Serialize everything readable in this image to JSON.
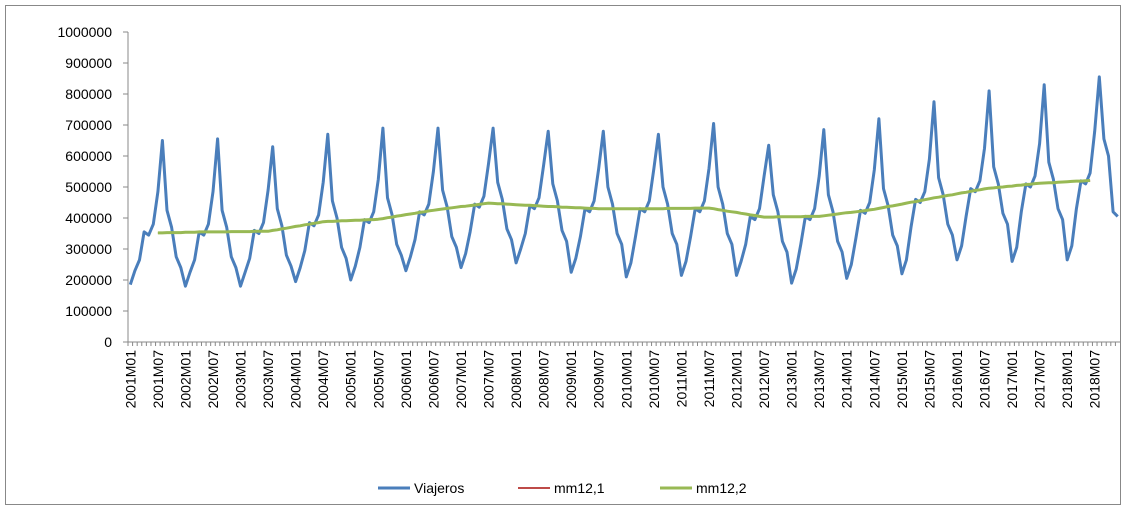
{
  "chart_data": {
    "type": "line",
    "categories": [
      "2001M01",
      null,
      null,
      null,
      null,
      null,
      "2001M07",
      null,
      null,
      null,
      null,
      null,
      "2002M01",
      null,
      null,
      null,
      null,
      null,
      "2002M07",
      null,
      null,
      null,
      null,
      null,
      "2003M01",
      null,
      null,
      null,
      null,
      null,
      "2003M07",
      null,
      null,
      null,
      null,
      null,
      "2004M01",
      null,
      null,
      null,
      null,
      null,
      "2004M07",
      null,
      null,
      null,
      null,
      null,
      "2005M01",
      null,
      null,
      null,
      null,
      null,
      "2005M07",
      null,
      null,
      null,
      null,
      null,
      "2006M01",
      null,
      null,
      null,
      null,
      null,
      "2006M07",
      null,
      null,
      null,
      null,
      null,
      "2007M01",
      null,
      null,
      null,
      null,
      null,
      "2007M07",
      null,
      null,
      null,
      null,
      null,
      "2008M01",
      null,
      null,
      null,
      null,
      null,
      "2008M07",
      null,
      null,
      null,
      null,
      null,
      "2009M01",
      null,
      null,
      null,
      null,
      null,
      "2009M07",
      null,
      null,
      null,
      null,
      null,
      "2010M01",
      null,
      null,
      null,
      null,
      null,
      "2010M07",
      null,
      null,
      null,
      null,
      null,
      "2011M01",
      null,
      null,
      null,
      null,
      null,
      "2011M07",
      null,
      null,
      null,
      null,
      null,
      "2012M01",
      null,
      null,
      null,
      null,
      null,
      "2012M07",
      null,
      null,
      null,
      null,
      null,
      "2013M01",
      null,
      null,
      null,
      null,
      null,
      "2013M07",
      null,
      null,
      null,
      null,
      null,
      "2014M01",
      null,
      null,
      null,
      null,
      null,
      "2014M07",
      null,
      null,
      null,
      null,
      null,
      "2015M01",
      null,
      null,
      null,
      null,
      null,
      "2015M07",
      null,
      null,
      null,
      null,
      null,
      "2016M01",
      null,
      null,
      null,
      null,
      null,
      "2016M07",
      null,
      null,
      null,
      null,
      null,
      "2017M01",
      null,
      null,
      null,
      null,
      null,
      "2017M07",
      null,
      null,
      null,
      null,
      null,
      "2018M01",
      null,
      null,
      null,
      null,
      null,
      "2018M07",
      null,
      null,
      null,
      null,
      null
    ],
    "series": [
      {
        "name": "Viajeros",
        "color": "#4a7ebb",
        "width": 3,
        "values": [
          185000,
          230000,
          265000,
          355000,
          345000,
          380000,
          485000,
          650000,
          425000,
          370000,
          275000,
          240000,
          180000,
          225000,
          265000,
          355000,
          345000,
          380000,
          485000,
          655000,
          425000,
          370000,
          275000,
          240000,
          180000,
          225000,
          270000,
          360000,
          350000,
          385000,
          490000,
          630000,
          430000,
          375000,
          280000,
          245000,
          195000,
          240000,
          295000,
          385000,
          375000,
          410000,
          515000,
          670000,
          455000,
          400000,
          305000,
          270000,
          200000,
          245000,
          305000,
          395000,
          385000,
          420000,
          525000,
          690000,
          465000,
          410000,
          315000,
          280000,
          230000,
          275000,
          330000,
          420000,
          410000,
          445000,
          550000,
          690000,
          490000,
          435000,
          340000,
          305000,
          240000,
          285000,
          355000,
          445000,
          435000,
          470000,
          575000,
          690000,
          515000,
          460000,
          365000,
          330000,
          255000,
          300000,
          350000,
          440000,
          430000,
          465000,
          570000,
          680000,
          510000,
          455000,
          360000,
          325000,
          225000,
          270000,
          340000,
          430000,
          420000,
          455000,
          560000,
          680000,
          500000,
          445000,
          350000,
          315000,
          210000,
          255000,
          340000,
          430000,
          420000,
          455000,
          560000,
          670000,
          500000,
          445000,
          350000,
          315000,
          215000,
          260000,
          340000,
          430000,
          420000,
          455000,
          560000,
          705000,
          500000,
          445000,
          350000,
          315000,
          215000,
          260000,
          315000,
          405000,
          395000,
          430000,
          535000,
          635000,
          475000,
          420000,
          325000,
          290000,
          190000,
          235000,
          315000,
          405000,
          395000,
          430000,
          535000,
          685000,
          475000,
          420000,
          325000,
          290000,
          205000,
          250000,
          335000,
          425000,
          415000,
          450000,
          555000,
          720000,
          495000,
          440000,
          345000,
          310000,
          220000,
          265000,
          370000,
          460000,
          450000,
          485000,
          590000,
          775000,
          530000,
          475000,
          380000,
          345000,
          265000,
          310000,
          405000,
          495000,
          485000,
          520000,
          625000,
          810000,
          565000,
          510000,
          415000,
          380000,
          260000,
          305000,
          420000,
          510000,
          500000,
          535000,
          640000,
          830000,
          580000,
          525000,
          430000,
          395000,
          265000,
          310000,
          430000,
          520000,
          510000,
          545000,
          680000,
          855000,
          655000,
          600000,
          420000,
          405000
        ]
      },
      {
        "name": "mm12,1",
        "color": "#be4b48",
        "width": 2,
        "values": [
          null,
          null,
          null,
          null,
          null,
          null,
          352000,
          352000,
          353000,
          353000,
          353000,
          353000,
          354000,
          354000,
          354000,
          355000,
          355000,
          355000,
          355000,
          355000,
          355000,
          355000,
          356000,
          356000,
          356000,
          356000,
          356000,
          357000,
          357000,
          357000,
          357000,
          360000,
          362000,
          365000,
          367000,
          370000,
          373000,
          375000,
          378000,
          380000,
          383000,
          385000,
          388000,
          389000,
          389000,
          390000,
          391000,
          391000,
          392000,
          393000,
          393000,
          394000,
          395000,
          395000,
          396000,
          398000,
          401000,
          403000,
          406000,
          408000,
          411000,
          413000,
          415000,
          418000,
          420000,
          423000,
          425000,
          427000,
          429000,
          431000,
          433000,
          435000,
          437000,
          438000,
          440000,
          442000,
          444000,
          446000,
          448000,
          447000,
          446000,
          446000,
          445000,
          444000,
          443000,
          442000,
          441000,
          441000,
          440000,
          439000,
          438000,
          437000,
          437000,
          436000,
          435000,
          435000,
          434000,
          433000,
          433000,
          432000,
          431000,
          431000,
          430000,
          430000,
          430000,
          430000,
          430000,
          430000,
          430000,
          430000,
          430000,
          430000,
          430000,
          430000,
          430000,
          430000,
          430000,
          431000,
          431000,
          431000,
          431000,
          431000,
          431000,
          432000,
          432000,
          432000,
          432000,
          430000,
          427000,
          425000,
          422000,
          420000,
          418000,
          415000,
          413000,
          410000,
          408000,
          405000,
          403000,
          403000,
          403000,
          404000,
          404000,
          404000,
          404000,
          404000,
          404000,
          405000,
          405000,
          405000,
          405000,
          407000,
          409000,
          411000,
          413000,
          415000,
          417000,
          418000,
          420000,
          422000,
          424000,
          426000,
          428000,
          431000,
          434000,
          437000,
          439000,
          442000,
          445000,
          448000,
          451000,
          453000,
          456000,
          459000,
          462000,
          465000,
          467000,
          470000,
          473000,
          475000,
          478000,
          481000,
          483000,
          486000,
          489000,
          491000,
          494000,
          496000,
          497000,
          499000,
          500000,
          502000,
          503000,
          505000,
          506000,
          508000,
          509000,
          511000,
          512000,
          513000,
          514000,
          514000,
          515000,
          516000,
          517000,
          518000,
          519000,
          519000,
          520000,
          521000,
          null,
          null,
          null,
          null,
          null,
          null
        ]
      },
      {
        "name": "mm12,2",
        "color": "#98b954",
        "width": 3,
        "values": [
          null,
          null,
          null,
          null,
          null,
          null,
          352000,
          352000,
          353000,
          353000,
          353000,
          353000,
          354000,
          354000,
          354000,
          355000,
          355000,
          355000,
          355000,
          355000,
          355000,
          355000,
          356000,
          356000,
          356000,
          356000,
          356000,
          357000,
          357000,
          357000,
          357000,
          360000,
          362000,
          365000,
          367000,
          370000,
          373000,
          375000,
          378000,
          380000,
          383000,
          385000,
          388000,
          389000,
          389000,
          390000,
          391000,
          391000,
          392000,
          393000,
          393000,
          394000,
          395000,
          395000,
          396000,
          398000,
          401000,
          403000,
          406000,
          408000,
          411000,
          413000,
          415000,
          418000,
          420000,
          423000,
          425000,
          427000,
          429000,
          431000,
          433000,
          435000,
          437000,
          438000,
          440000,
          442000,
          444000,
          446000,
          448000,
          447000,
          446000,
          446000,
          445000,
          444000,
          443000,
          442000,
          441000,
          441000,
          440000,
          439000,
          438000,
          437000,
          437000,
          436000,
          435000,
          435000,
          434000,
          433000,
          433000,
          432000,
          431000,
          431000,
          430000,
          430000,
          430000,
          430000,
          430000,
          430000,
          430000,
          430000,
          430000,
          430000,
          430000,
          430000,
          430000,
          430000,
          430000,
          431000,
          431000,
          431000,
          431000,
          431000,
          431000,
          432000,
          432000,
          432000,
          432000,
          430000,
          427000,
          425000,
          422000,
          420000,
          418000,
          415000,
          413000,
          410000,
          408000,
          405000,
          403000,
          403000,
          403000,
          404000,
          404000,
          404000,
          404000,
          404000,
          404000,
          405000,
          405000,
          405000,
          405000,
          407000,
          409000,
          411000,
          413000,
          415000,
          417000,
          418000,
          420000,
          422000,
          424000,
          426000,
          428000,
          431000,
          434000,
          437000,
          439000,
          442000,
          445000,
          448000,
          451000,
          453000,
          456000,
          459000,
          462000,
          465000,
          467000,
          470000,
          473000,
          475000,
          478000,
          481000,
          483000,
          486000,
          489000,
          491000,
          494000,
          496000,
          497000,
          499000,
          500000,
          502000,
          503000,
          505000,
          506000,
          508000,
          509000,
          511000,
          512000,
          513000,
          514000,
          514000,
          515000,
          516000,
          517000,
          518000,
          519000,
          519000,
          520000,
          521000,
          null,
          null,
          null,
          null,
          null,
          null
        ]
      }
    ],
    "ylim": [
      0,
      1000000
    ],
    "yticks": [
      0,
      100000,
      200000,
      300000,
      400000,
      500000,
      600000,
      700000,
      800000,
      900000,
      1000000
    ],
    "grid": false,
    "legend": "bottom"
  }
}
